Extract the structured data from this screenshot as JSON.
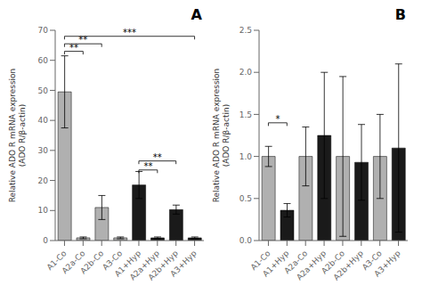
{
  "chart_data": [
    {
      "type": "bar",
      "title": "A",
      "categories": [
        "A1-Co",
        "A2a-Co",
        "A2b-Co",
        "A3-Co",
        "A1+Hyp",
        "A2a+Hyp",
        "A2b+Hyp",
        "A3+Hyp"
      ],
      "values": [
        49.5,
        0.9,
        11.0,
        0.9,
        18.5,
        0.9,
        10.3,
        0.9
      ],
      "errors": [
        12.0,
        0.3,
        4.0,
        0.3,
        4.5,
        0.3,
        1.5,
        0.3
      ],
      "colors": [
        "#b0b0b0",
        "#b0b0b0",
        "#b0b0b0",
        "#b0b0b0",
        "#1a1a1a",
        "#1a1a1a",
        "#1a1a1a",
        "#1a1a1a"
      ],
      "ylabel": "Relative ADO R mRNA expression\n(ADO R/β-actin)",
      "ylim": [
        0,
        70
      ],
      "yticks": [
        0,
        10,
        20,
        30,
        40,
        50,
        60,
        70
      ],
      "annotations": [
        {
          "text": "**",
          "from": "A1-Co",
          "to": "A2a-Co",
          "y": 63.0
        },
        {
          "text": "**",
          "from": "A1-Co",
          "to": "A2b-Co",
          "y": 65.5
        },
        {
          "text": "***",
          "from": "A1-Co",
          "to": "A3+Hyp",
          "y": 68.0
        },
        {
          "text": "**",
          "from": "A1+Hyp",
          "to": "A2a+Hyp",
          "y": 23.5
        },
        {
          "text": "**",
          "from": "A1+Hyp",
          "to": "A2b+Hyp",
          "y": 26.5
        }
      ]
    },
    {
      "type": "bar",
      "title": "B",
      "categories": [
        "A1-Co",
        "A1+Hyp",
        "A2a-Co",
        "A2a+Hyp",
        "A2b-Co",
        "A2b+Hyp",
        "A3-Co",
        "A3+Hyp"
      ],
      "values": [
        1.0,
        0.36,
        1.0,
        1.25,
        1.0,
        0.93,
        1.0,
        1.1
      ],
      "errors": [
        0.12,
        0.08,
        0.35,
        0.75,
        0.95,
        0.45,
        0.5,
        1.0
      ],
      "colors": [
        "#b0b0b0",
        "#1a1a1a",
        "#b0b0b0",
        "#1a1a1a",
        "#b0b0b0",
        "#1a1a1a",
        "#b0b0b0",
        "#1a1a1a"
      ],
      "ylabel": "Relative ADO R mRNA expression\n(ADO R/β-actin)",
      "ylim": [
        0,
        2.5
      ],
      "yticks": [
        {
          "value": 0.0,
          "label": "0.0"
        },
        0.5,
        {
          "value": 1.0,
          "label": "1.0"
        },
        1.5,
        {
          "value": 2.0,
          "label": "2.0"
        },
        2.5
      ],
      "annotations": [
        {
          "text": "*",
          "from": "A1-Co",
          "to": "A1+Hyp",
          "y": 1.4
        }
      ]
    }
  ]
}
